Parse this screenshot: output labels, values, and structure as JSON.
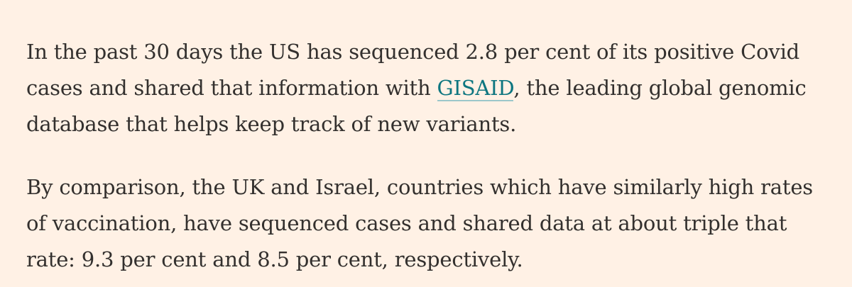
{
  "article": {
    "paragraph_1": {
      "before_link": "In the past 30 days the US has sequenced 2.8 per cent of its positive Covid cases and shared that information with ",
      "link_text": "GISAID",
      "after_link": ", the leading global genomic database that helps keep track of new variants."
    },
    "paragraph_2": {
      "text": "By comparison, the UK and Israel, countries which have similarly high rates of vaccination, have sequenced cases and shared data at about triple that rate: 9.3 per cent and 8.5 per cent, respectively."
    }
  },
  "colors": {
    "background": "#fff1e5",
    "text": "#33302e",
    "link": "#0d7680"
  }
}
